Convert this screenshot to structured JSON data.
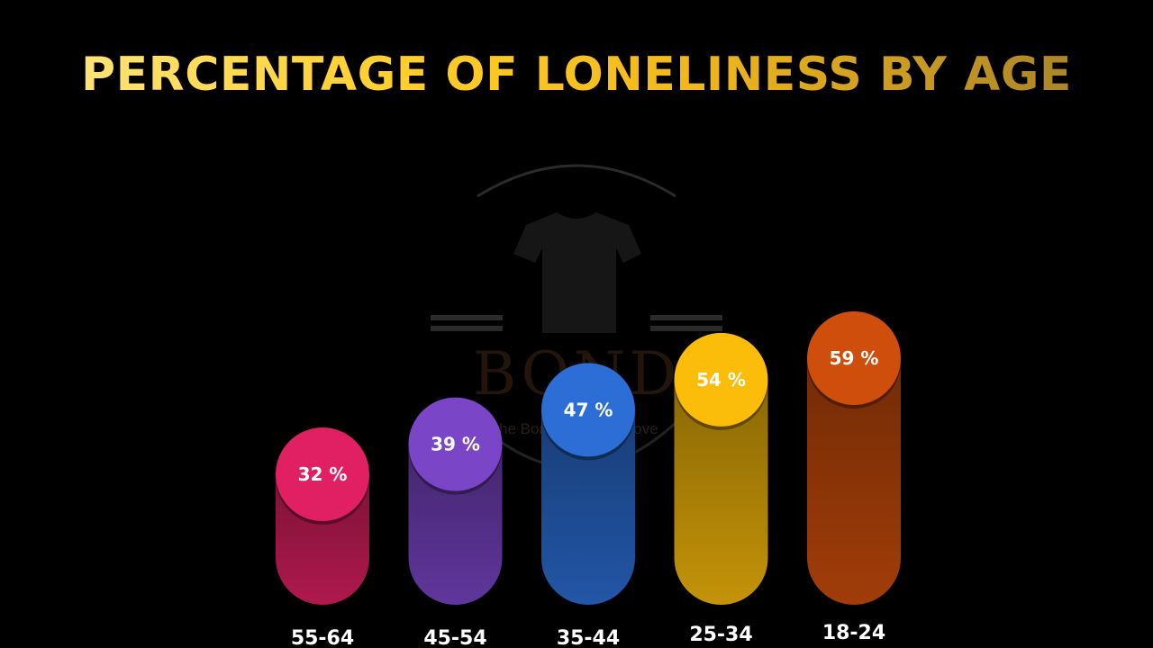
{
  "chart_data": {
    "type": "bar",
    "title": "PERCENTAGE OF LONELINESS BY AGE",
    "categories": [
      "55-64",
      "45-54",
      "35-44",
      "25-34",
      "18-24"
    ],
    "values": [
      32,
      39,
      47,
      54,
      59
    ],
    "value_suffix": " %",
    "ylim": [
      0,
      100
    ],
    "grid": false,
    "colors": {
      "55-64": "#e02063",
      "45-54": "#7b45c8",
      "35-44": "#2c6ed6",
      "25-34": "#fbbd0a",
      "18-24": "#cf4e0b"
    }
  },
  "watermark": {
    "brand": "BOND",
    "tagline": "the Bond More the Love",
    "icon": "tshirt-icon"
  }
}
